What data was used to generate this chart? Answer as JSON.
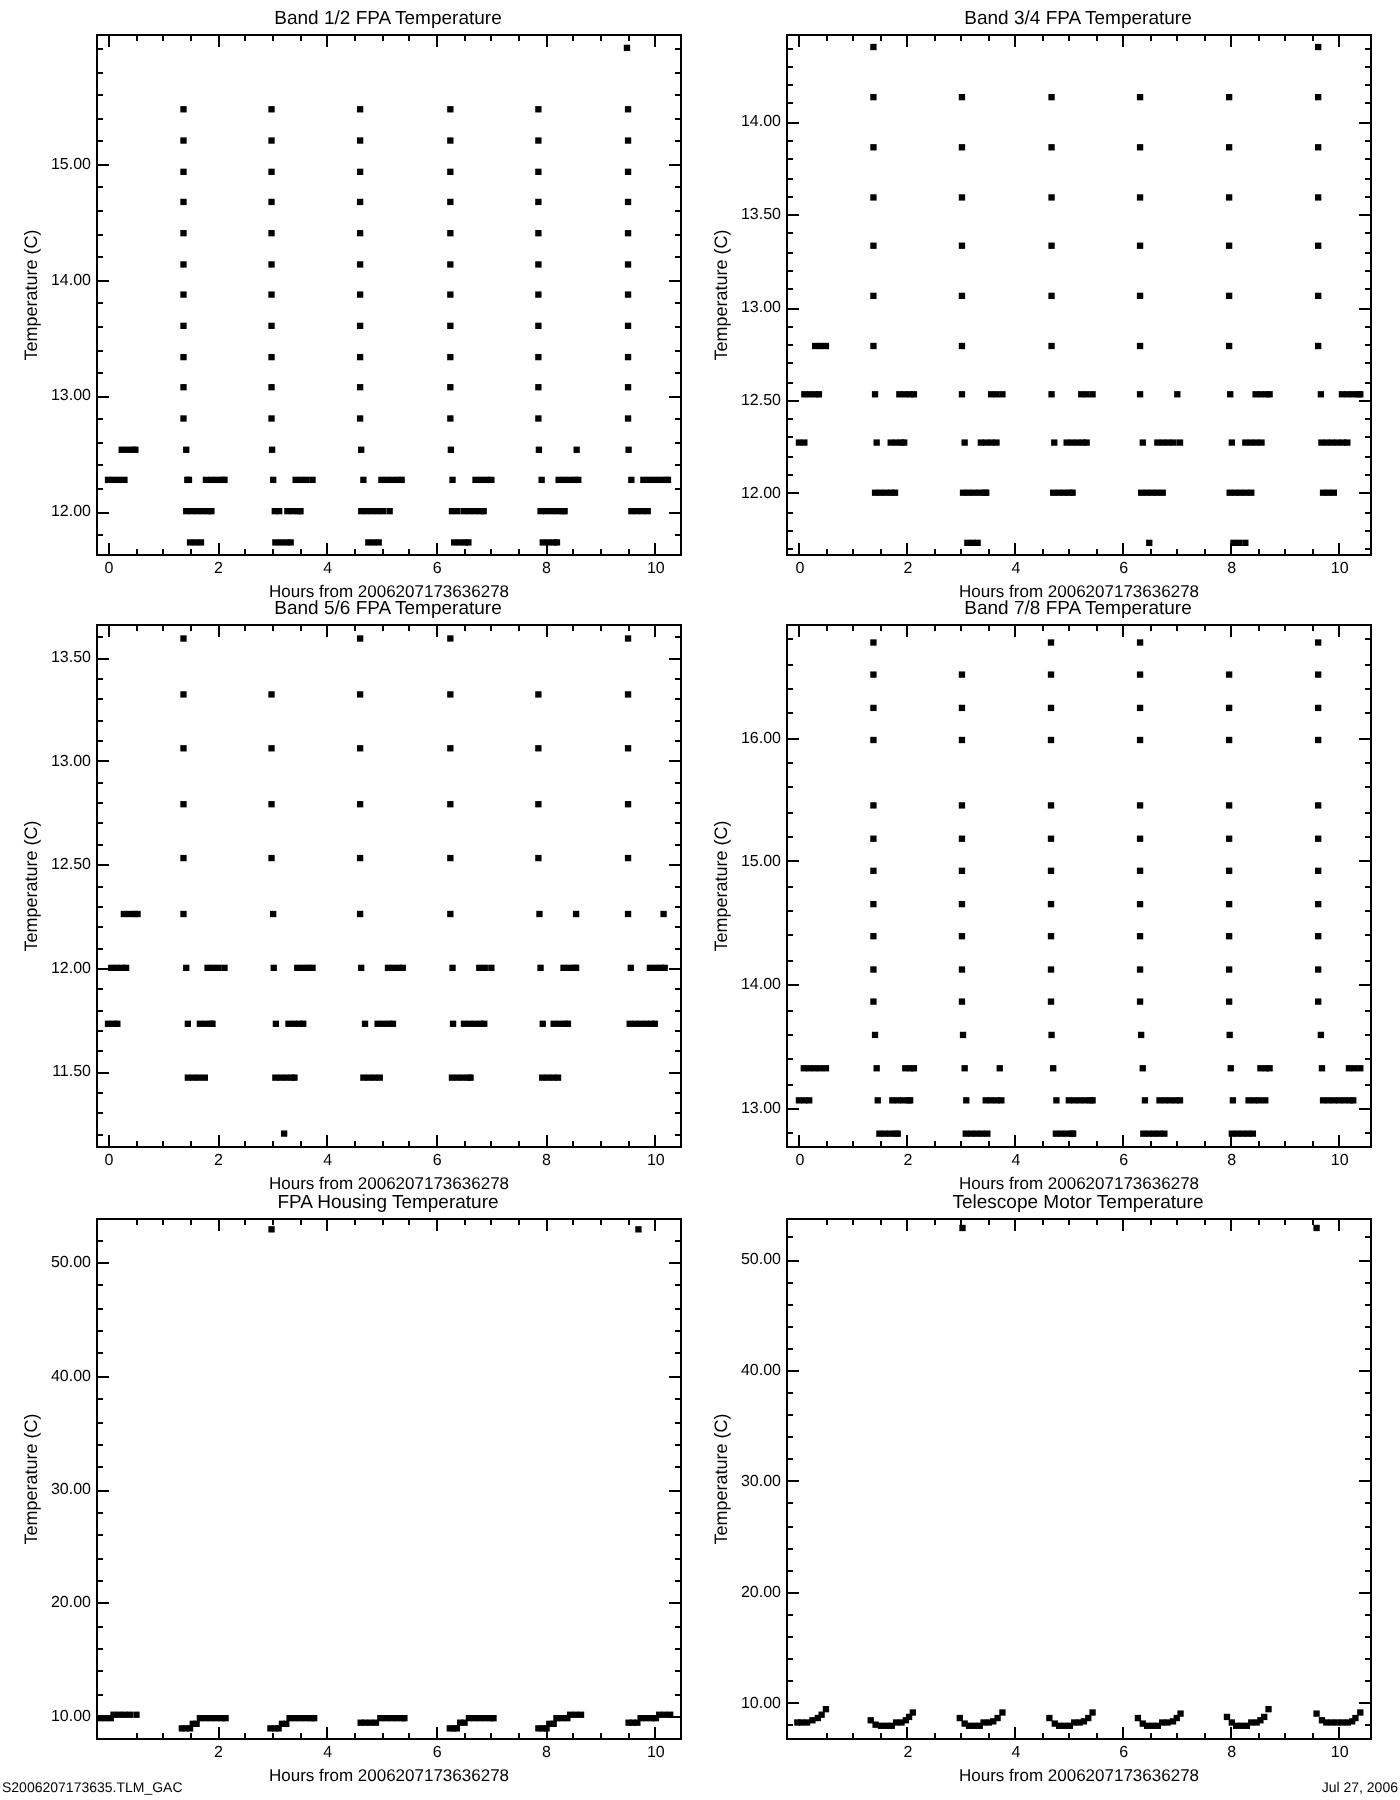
{
  "chart_data": [
    {
      "type": "scatter",
      "title": "Band 1/2 FPA Temperature",
      "xlabel": "Hours from 2006207173636278",
      "ylabel": "Temperature (C)",
      "color": "#000000",
      "marker": "square",
      "xlim": [
        -0.22,
        10.46
      ],
      "ylim": [
        11.63,
        16.12
      ],
      "xticks": [
        0,
        {
          "value": 0.5,
          "label": null
        },
        {
          "value": 1,
          "label": null
        },
        {
          "value": 1.5,
          "label": null
        },
        2,
        {
          "value": 2.5,
          "label": null
        },
        {
          "value": 3,
          "label": null
        },
        {
          "value": 3.5,
          "label": null
        },
        4,
        {
          "value": 4.5,
          "label": null
        },
        {
          "value": 5,
          "label": null
        },
        {
          "value": 5.5,
          "label": null
        },
        6,
        {
          "value": 6.5,
          "label": null
        },
        {
          "value": 7,
          "label": null
        },
        {
          "value": 7.5,
          "label": null
        },
        8,
        {
          "value": 8.5,
          "label": null
        },
        {
          "value": 9,
          "label": null
        },
        {
          "value": 9.5,
          "label": null
        },
        10
      ],
      "yticks": [
        {
          "value": 11.8,
          "label": null
        },
        {
          "value": 12,
          "label": "12.00"
        },
        {
          "value": 12.2,
          "label": null
        },
        {
          "value": 12.4,
          "label": null
        },
        {
          "value": 12.6,
          "label": null
        },
        {
          "value": 12.8,
          "label": null
        },
        {
          "value": 13,
          "label": "13.00"
        },
        {
          "value": 13.2,
          "label": null
        },
        {
          "value": 13.4,
          "label": null
        },
        {
          "value": 13.6,
          "label": null
        },
        {
          "value": 13.8,
          "label": null
        },
        {
          "value": 14,
          "label": "14.00"
        },
        {
          "value": 14.2,
          "label": null
        },
        {
          "value": 14.4,
          "label": null
        },
        {
          "value": 14.6,
          "label": null
        },
        {
          "value": 14.8,
          "label": null
        },
        {
          "value": 15,
          "label": "15.00"
        },
        {
          "value": 15.2,
          "label": null
        },
        {
          "value": 15.4,
          "label": null
        },
        {
          "value": 15.6,
          "label": null
        },
        {
          "value": 15.8,
          "label": null
        },
        {
          "value": 16,
          "label": null
        }
      ],
      "x": [
        0,
        0.1,
        0.2,
        0.3,
        0.25,
        0.35,
        0.45,
        0.5,
        1.38,
        1.38,
        1.38,
        1.38,
        1.38,
        1.38,
        1.38,
        1.38,
        1.38,
        1.38,
        1.38,
        1.43,
        1.45,
        1.48,
        1.43,
        1.53,
        1.63,
        1.73,
        1.83,
        1.89,
        1.5,
        1.6,
        1.7,
        1.79,
        1.89,
        1.99,
        2.09,
        2.13,
        2.99,
        2.99,
        2.99,
        2.99,
        2.99,
        2.99,
        2.99,
        2.99,
        2.99,
        2.99,
        2.99,
        3,
        3.02,
        3.05,
        3.13,
        3.28,
        3.38,
        3.48,
        3.52,
        3.06,
        3.16,
        3.26,
        3.34,
        3.43,
        3.53,
        3.63,
        3.74,
        4.61,
        4.61,
        4.61,
        4.61,
        4.61,
        4.61,
        4.61,
        4.61,
        4.61,
        4.61,
        4.61,
        4.63,
        4.67,
        4.63,
        4.73,
        4.83,
        4.93,
        5.03,
        5.15,
        4.76,
        4.86,
        4.95,
        5,
        5.1,
        5.2,
        5.3,
        5.37,
        6.26,
        6.26,
        6.26,
        6.26,
        6.26,
        6.26,
        6.26,
        6.26,
        6.26,
        6.26,
        6.26,
        6.27,
        6.3,
        6.29,
        6.39,
        6.51,
        6.61,
        6.71,
        6.81,
        6.87,
        6.33,
        6.43,
        6.53,
        6.59,
        6.72,
        6.82,
        6.92,
        7.01,
        7.87,
        7.87,
        7.87,
        7.87,
        7.87,
        7.87,
        7.87,
        7.87,
        7.87,
        7.87,
        7.87,
        7.88,
        7.93,
        7.91,
        8.01,
        8.12,
        8.22,
        8.32,
        8.35,
        7.95,
        8.05,
        8.15,
        8.21,
        8.24,
        8.34,
        8.44,
        8.54,
        8.6,
        8.57,
        9.49,
        9.51,
        9.51,
        9.51,
        9.51,
        9.51,
        9.51,
        9.51,
        9.51,
        9.51,
        9.51,
        9.51,
        9.52,
        9.57,
        9.57,
        9.67,
        9.77,
        9.87,
        9.79,
        9.89,
        9.99,
        10.09,
        10.19,
        10.24
      ],
      "values": [
        12.27,
        12.27,
        12.27,
        12.27,
        12.53,
        12.53,
        12.53,
        12.53,
        15.47,
        15.2,
        14.93,
        14.67,
        14.4,
        14.13,
        13.87,
        13.6,
        13.33,
        13.07,
        12.8,
        12.53,
        12.27,
        12.27,
        12,
        12,
        12,
        12,
        12,
        12,
        11.73,
        11.73,
        11.73,
        12.27,
        12.27,
        12.27,
        12.27,
        12.27,
        15.47,
        15.2,
        14.93,
        14.67,
        14.4,
        14.13,
        13.87,
        13.6,
        13.33,
        13.07,
        12.8,
        12.53,
        12.27,
        12,
        12,
        12,
        12,
        12,
        12,
        11.73,
        11.73,
        11.73,
        11.73,
        12.27,
        12.27,
        12.27,
        12.27,
        15.47,
        15.2,
        14.93,
        14.67,
        14.4,
        14.13,
        13.87,
        13.6,
        13.33,
        13.07,
        12.8,
        12.53,
        12.27,
        12,
        12,
        12,
        12,
        12,
        12,
        11.73,
        11.73,
        11.73,
        12.27,
        12.27,
        12.27,
        12.27,
        12.27,
        15.47,
        15.2,
        14.93,
        14.67,
        14.4,
        14.13,
        13.87,
        13.6,
        13.33,
        13.07,
        12.8,
        12.53,
        12.27,
        12,
        12,
        12,
        12,
        12,
        12,
        12,
        11.73,
        11.73,
        11.73,
        11.73,
        12.27,
        12.27,
        12.27,
        12.27,
        15.47,
        15.2,
        14.93,
        14.67,
        14.4,
        14.13,
        13.87,
        13.6,
        13.33,
        13.07,
        12.8,
        12.53,
        12.27,
        12,
        12,
        12,
        12,
        12,
        12,
        11.73,
        11.73,
        11.73,
        11.73,
        12.27,
        12.27,
        12.27,
        12.27,
        12.27,
        12.53,
        16,
        15.47,
        15.2,
        14.93,
        14.67,
        14.4,
        14.13,
        13.87,
        13.6,
        13.33,
        13.07,
        12.8,
        12.53,
        12.27,
        12,
        12,
        12,
        12,
        12.27,
        12.27,
        12.27,
        12.27,
        12.27,
        12.27
      ]
    },
    {
      "type": "scatter",
      "title": "Band 3/4 FPA Temperature",
      "xlabel": "Hours from 2006207173636278",
      "ylabel": "Temperature (C)",
      "color": "#000000",
      "marker": "square",
      "xlim": [
        -0.24,
        10.58
      ],
      "ylim": [
        11.67,
        14.47
      ],
      "xticks": [
        0,
        {
          "value": 0.5,
          "label": null
        },
        {
          "value": 1,
          "label": null
        },
        {
          "value": 1.5,
          "label": null
        },
        2,
        {
          "value": 2.5,
          "label": null
        },
        {
          "value": 3,
          "label": null
        },
        {
          "value": 3.5,
          "label": null
        },
        4,
        {
          "value": 4.5,
          "label": null
        },
        {
          "value": 5,
          "label": null
        },
        {
          "value": 5.5,
          "label": null
        },
        6,
        {
          "value": 6.5,
          "label": null
        },
        {
          "value": 7,
          "label": null
        },
        {
          "value": 7.5,
          "label": null
        },
        8,
        {
          "value": 8.5,
          "label": null
        },
        {
          "value": 9,
          "label": null
        },
        {
          "value": 9.5,
          "label": null
        },
        10
      ],
      "yticks": [
        {
          "value": 11.7,
          "label": null
        },
        {
          "value": 11.8,
          "label": null
        },
        {
          "value": 11.9,
          "label": null
        },
        {
          "value": 12,
          "label": "12.00"
        },
        {
          "value": 12.1,
          "label": null
        },
        {
          "value": 12.2,
          "label": null
        },
        {
          "value": 12.3,
          "label": null
        },
        {
          "value": 12.4,
          "label": null
        },
        {
          "value": 12.5,
          "label": "12.50"
        },
        {
          "value": 12.6,
          "label": null
        },
        {
          "value": 12.7,
          "label": null
        },
        {
          "value": 12.8,
          "label": null
        },
        {
          "value": 12.9,
          "label": null
        },
        {
          "value": 13,
          "label": "13.00"
        },
        {
          "value": 13.1,
          "label": null
        },
        {
          "value": 13.2,
          "label": null
        },
        {
          "value": 13.3,
          "label": null
        },
        {
          "value": 13.4,
          "label": null
        },
        {
          "value": 13.5,
          "label": "13.50"
        },
        {
          "value": 13.6,
          "label": null
        },
        {
          "value": 13.7,
          "label": null
        },
        {
          "value": 13.8,
          "label": null
        },
        {
          "value": 13.9,
          "label": null
        },
        {
          "value": 14,
          "label": "14.00"
        },
        {
          "value": 14.1,
          "label": null
        },
        {
          "value": 14.2,
          "label": null
        },
        {
          "value": 14.3,
          "label": null
        },
        {
          "value": 14.4,
          "label": null
        }
      ],
      "x": [
        0,
        0.1,
        0.1,
        0.2,
        0.3,
        0.37,
        0.3,
        0.4,
        0.5,
        1.38,
        1.38,
        1.38,
        1.38,
        1.38,
        1.38,
        1.38,
        1.41,
        1.44,
        1.41,
        1.51,
        1.61,
        1.71,
        1.78,
        1.7,
        1.8,
        1.9,
        1.95,
        1.86,
        1.96,
        2.06,
        2.13,
        3.02,
        3.02,
        3.02,
        3.02,
        3.02,
        3.02,
        3.02,
        3.07,
        3.04,
        3.14,
        3.24,
        3.34,
        3.44,
        3.47,
        3.12,
        3.22,
        3.31,
        3.37,
        3.47,
        3.57,
        3.66,
        3.56,
        3.66,
        3.77,
        4.68,
        4.68,
        4.68,
        4.68,
        4.68,
        4.68,
        4.68,
        4.73,
        4.71,
        4.81,
        4.91,
        5.01,
        5.07,
        4.96,
        5.06,
        5.16,
        5.26,
        5.33,
        5.23,
        5.33,
        5.44,
        6.32,
        6.32,
        6.32,
        6.32,
        6.32,
        6.32,
        6.32,
        6.37,
        6.34,
        6.44,
        6.54,
        6.64,
        6.74,
        6.49,
        6.64,
        6.74,
        6.84,
        6.94,
        7.06,
        7.01,
        7.97,
        7.97,
        7.97,
        7.97,
        7.97,
        7.97,
        7.99,
        8.02,
        7.98,
        8.08,
        8.18,
        8.28,
        8.38,
        8.05,
        8.15,
        8.27,
        8.27,
        8.37,
        8.47,
        8.57,
        8.46,
        8.56,
        8.66,
        8.72,
        9.62,
        9.62,
        9.62,
        9.62,
        9.62,
        9.62,
        9.62,
        9.67,
        9.68,
        9.71,
        9.81,
        9.91,
        9.78,
        9.88,
        9.98,
        10.08,
        10.16,
        10.06,
        10.16,
        10.26,
        10.36,
        10.4
      ],
      "values": [
        12.27,
        12.27,
        12.53,
        12.53,
        12.53,
        12.53,
        12.79,
        12.79,
        12.79,
        14.4,
        14.13,
        13.86,
        13.59,
        13.33,
        13.06,
        12.79,
        12.53,
        12.27,
        12,
        12,
        12,
        12,
        12,
        12.27,
        12.27,
        12.27,
        12.27,
        12.53,
        12.53,
        12.53,
        12.53,
        14.13,
        13.86,
        13.59,
        13.33,
        13.06,
        12.79,
        12.53,
        12.27,
        12,
        12,
        12,
        12,
        12,
        12,
        11.73,
        11.73,
        11.73,
        12.27,
        12.27,
        12.27,
        12.27,
        12.53,
        12.53,
        12.53,
        14.13,
        13.86,
        13.59,
        13.33,
        13.06,
        12.79,
        12.53,
        12.27,
        12,
        12,
        12,
        12,
        12,
        12.27,
        12.27,
        12.27,
        12.27,
        12.27,
        12.53,
        12.53,
        12.53,
        14.13,
        13.86,
        13.59,
        13.33,
        13.06,
        12.79,
        12.53,
        12.27,
        12,
        12,
        12,
        12,
        12,
        11.73,
        12.27,
        12.27,
        12.27,
        12.27,
        12.27,
        12.53,
        14.13,
        13.86,
        13.59,
        13.33,
        13.06,
        12.79,
        12.53,
        12.27,
        12,
        12,
        12,
        12,
        12,
        11.73,
        11.73,
        11.73,
        12.27,
        12.27,
        12.27,
        12.27,
        12.53,
        12.53,
        12.53,
        12.53,
        14.4,
        14.13,
        13.86,
        13.59,
        13.33,
        13.06,
        12.79,
        12.53,
        12.27,
        12,
        12,
        12,
        12.27,
        12.27,
        12.27,
        12.27,
        12.27,
        12.53,
        12.53,
        12.53,
        12.53,
        12.53
      ]
    },
    {
      "type": "scatter",
      "title": "Band 5/6 FPA Temperature",
      "xlabel": "Hours from 2006207173636278",
      "ylabel": "Temperature (C)",
      "color": "#000000",
      "marker": "square",
      "xlim": [
        -0.22,
        10.46
      ],
      "ylim": [
        11.14,
        13.66
      ],
      "xticks": [
        0,
        {
          "value": 0.5,
          "label": null
        },
        {
          "value": 1,
          "label": null
        },
        {
          "value": 1.5,
          "label": null
        },
        2,
        {
          "value": 2.5,
          "label": null
        },
        {
          "value": 3,
          "label": null
        },
        {
          "value": 3.5,
          "label": null
        },
        4,
        {
          "value": 4.5,
          "label": null
        },
        {
          "value": 5,
          "label": null
        },
        {
          "value": 5.5,
          "label": null
        },
        6,
        {
          "value": 6.5,
          "label": null
        },
        {
          "value": 7,
          "label": null
        },
        {
          "value": 7.5,
          "label": null
        },
        8,
        {
          "value": 8.5,
          "label": null
        },
        {
          "value": 9,
          "label": null
        },
        {
          "value": 9.5,
          "label": null
        },
        10
      ],
      "yticks": [
        {
          "value": 11.2,
          "label": null
        },
        {
          "value": 11.3,
          "label": null
        },
        {
          "value": 11.4,
          "label": null
        },
        {
          "value": 11.5,
          "label": "11.50"
        },
        {
          "value": 11.6,
          "label": null
        },
        {
          "value": 11.7,
          "label": null
        },
        {
          "value": 11.8,
          "label": null
        },
        {
          "value": 11.9,
          "label": null
        },
        {
          "value": 12,
          "label": "12.00"
        },
        {
          "value": 12.1,
          "label": null
        },
        {
          "value": 12.2,
          "label": null
        },
        {
          "value": 12.3,
          "label": null
        },
        {
          "value": 12.4,
          "label": null
        },
        {
          "value": 12.5,
          "label": "12.50"
        },
        {
          "value": 12.6,
          "label": null
        },
        {
          "value": 12.7,
          "label": null
        },
        {
          "value": 12.8,
          "label": null
        },
        {
          "value": 12.9,
          "label": null
        },
        {
          "value": 13,
          "label": "13.00"
        },
        {
          "value": 13.1,
          "label": null
        },
        {
          "value": 13.2,
          "label": null
        },
        {
          "value": 13.3,
          "label": null
        },
        {
          "value": 13.4,
          "label": null
        },
        {
          "value": 13.5,
          "label": "13.50"
        },
        {
          "value": 13.6,
          "label": null
        }
      ],
      "x": [
        0,
        0.1,
        0.17,
        0.06,
        0.16,
        0.26,
        0.33,
        0.29,
        0.39,
        0.49,
        0.54,
        1.38,
        1.38,
        1.38,
        1.38,
        1.38,
        1.38,
        1.43,
        1.46,
        1.46,
        1.56,
        1.66,
        1.77,
        1.68,
        1.78,
        1.88,
        1.91,
        1.82,
        1.92,
        2.02,
        2.13,
        2.99,
        2.99,
        2.99,
        2.99,
        3.02,
        3.03,
        3.07,
        3.06,
        3.16,
        3.26,
        3.36,
        3.41,
        3.22,
        3.3,
        3.4,
        3.5,
        3.57,
        3.46,
        3.56,
        3.66,
        3.74,
        4.61,
        4.61,
        4.61,
        4.61,
        4.61,
        4.61,
        4.63,
        4.7,
        4.67,
        4.77,
        4.87,
        4.97,
        4.93,
        5.03,
        5.13,
        5.21,
        5.12,
        5.22,
        5.32,
        5.39,
        6.26,
        6.26,
        6.26,
        6.26,
        6.26,
        6.26,
        6.3,
        6.31,
        6.29,
        6.39,
        6.49,
        6.59,
        6.63,
        6.51,
        6.61,
        6.71,
        6.81,
        6.88,
        6.79,
        6.89,
        7.01,
        7.87,
        7.87,
        7.87,
        7.87,
        7.89,
        7.91,
        7.95,
        7.94,
        8.04,
        8.14,
        8.23,
        8.15,
        8.25,
        8.35,
        8.41,
        8.33,
        8.43,
        8.53,
        8.56,
        8.56,
        9.51,
        9.51,
        9.51,
        9.51,
        9.51,
        9.51,
        9.56,
        9.54,
        9.64,
        9.74,
        9.84,
        9.94,
        10,
        9.91,
        10.01,
        10.11,
        10.18,
        10.16
      ],
      "values": [
        11.73,
        11.73,
        11.73,
        12,
        12,
        12,
        12,
        12.26,
        12.26,
        12.26,
        12.26,
        13.59,
        13.32,
        13.06,
        12.79,
        12.53,
        12.26,
        12,
        11.73,
        11.47,
        11.47,
        11.47,
        11.47,
        11.73,
        11.73,
        11.73,
        11.73,
        12,
        12,
        12,
        12,
        13.32,
        13.06,
        12.79,
        12.53,
        12.26,
        12,
        11.73,
        11.47,
        11.47,
        11.47,
        11.47,
        11.47,
        11.2,
        11.73,
        11.73,
        11.73,
        11.73,
        12,
        12,
        12,
        12,
        13.59,
        13.32,
        13.06,
        12.79,
        12.53,
        12.26,
        12,
        11.73,
        11.47,
        11.47,
        11.47,
        11.47,
        11.73,
        11.73,
        11.73,
        11.73,
        12,
        12,
        12,
        12,
        13.59,
        13.32,
        13.06,
        12.79,
        12.53,
        12.26,
        12,
        11.73,
        11.47,
        11.47,
        11.47,
        11.47,
        11.47,
        11.73,
        11.73,
        11.73,
        11.73,
        11.73,
        12,
        12,
        12,
        13.32,
        13.06,
        12.79,
        12.53,
        12.26,
        12,
        11.73,
        11.47,
        11.47,
        11.47,
        11.47,
        11.73,
        11.73,
        11.73,
        11.73,
        12,
        12,
        12,
        12,
        12.26,
        13.59,
        13.32,
        13.06,
        12.79,
        12.53,
        12.26,
        12,
        11.73,
        11.73,
        11.73,
        11.73,
        11.73,
        11.73,
        12,
        12,
        12,
        12,
        12.26
      ]
    },
    {
      "type": "scatter",
      "title": "Band 7/8 FPA Temperature",
      "xlabel": "Hours from 2006207173636278",
      "ylabel": "Temperature (C)",
      "color": "#000000",
      "marker": "square",
      "xlim": [
        -0.24,
        10.58
      ],
      "ylim": [
        12.69,
        16.92
      ],
      "xticks": [
        0,
        {
          "value": 0.5,
          "label": null
        },
        {
          "value": 1,
          "label": null
        },
        {
          "value": 1.5,
          "label": null
        },
        2,
        {
          "value": 2.5,
          "label": null
        },
        {
          "value": 3,
          "label": null
        },
        {
          "value": 3.5,
          "label": null
        },
        4,
        {
          "value": 4.5,
          "label": null
        },
        {
          "value": 5,
          "label": null
        },
        {
          "value": 5.5,
          "label": null
        },
        6,
        {
          "value": 6.5,
          "label": null
        },
        {
          "value": 7,
          "label": null
        },
        {
          "value": 7.5,
          "label": null
        },
        8,
        {
          "value": 8.5,
          "label": null
        },
        {
          "value": 9,
          "label": null
        },
        {
          "value": 9.5,
          "label": null
        },
        10
      ],
      "yticks": [
        {
          "value": 12.8,
          "label": null
        },
        {
          "value": 13,
          "label": "13.00"
        },
        {
          "value": 13.2,
          "label": null
        },
        {
          "value": 13.4,
          "label": null
        },
        {
          "value": 13.6,
          "label": null
        },
        {
          "value": 13.8,
          "label": null
        },
        {
          "value": 14,
          "label": "14.00"
        },
        {
          "value": 14.2,
          "label": null
        },
        {
          "value": 14.4,
          "label": null
        },
        {
          "value": 14.6,
          "label": null
        },
        {
          "value": 14.8,
          "label": null
        },
        {
          "value": 15,
          "label": "15.00"
        },
        {
          "value": 15.2,
          "label": null
        },
        {
          "value": 15.4,
          "label": null
        },
        {
          "value": 15.6,
          "label": null
        },
        {
          "value": 15.8,
          "label": null
        },
        {
          "value": 16,
          "label": "16.00"
        },
        {
          "value": 16.2,
          "label": null
        },
        {
          "value": 16.4,
          "label": null
        },
        {
          "value": 16.6,
          "label": null
        },
        {
          "value": 16.8,
          "label": null
        }
      ],
      "x": [
        0,
        0.1,
        0.19,
        0.09,
        0.19,
        0.29,
        0.39,
        0.5,
        1.38,
        1.38,
        1.38,
        1.38,
        1.38,
        1.38,
        1.38,
        1.38,
        1.38,
        1.38,
        1.38,
        1.41,
        1.44,
        1.46,
        1.49,
        1.59,
        1.69,
        1.79,
        1.83,
        1.73,
        1.83,
        1.93,
        2.03,
        2.06,
        1.97,
        2.07,
        2.13,
        3.02,
        3.02,
        3.02,
        3.02,
        3.02,
        3.02,
        3.02,
        3.02,
        3.02,
        3.02,
        3.04,
        3.07,
        3.1,
        3.09,
        3.19,
        3.29,
        3.39,
        3.49,
        3.46,
        3.56,
        3.66,
        3.75,
        3.72,
        4.67,
        4.67,
        4.67,
        4.67,
        4.67,
        4.67,
        4.67,
        4.67,
        4.67,
        4.67,
        4.67,
        4.68,
        4.71,
        4.77,
        4.76,
        4.86,
        4.96,
        5.06,
        5.08,
        5,
        5.1,
        5.2,
        5.3,
        5.4,
        5.44,
        6.32,
        6.32,
        6.32,
        6.32,
        6.32,
        6.32,
        6.32,
        6.32,
        6.32,
        6.32,
        6.32,
        6.34,
        6.37,
        6.41,
        6.38,
        6.48,
        6.58,
        6.68,
        6.77,
        6.68,
        6.78,
        6.88,
        6.98,
        7.06,
        7.97,
        7.97,
        7.97,
        7.97,
        7.97,
        7.97,
        7.97,
        7.97,
        7.97,
        7.97,
        7.98,
        8,
        8.04,
        8.02,
        8.12,
        8.22,
        8.32,
        8.41,
        8.33,
        8.43,
        8.53,
        8.64,
        8.55,
        8.65,
        8.72,
        9.62,
        9.62,
        9.62,
        9.62,
        9.62,
        9.62,
        9.62,
        9.62,
        9.62,
        9.62,
        9.62,
        9.67,
        9.69,
        9.71,
        9.81,
        9.91,
        10.01,
        10.11,
        10.21,
        10.27,
        10.19,
        10.29,
        10.4
      ],
      "values": [
        13.06,
        13.06,
        13.06,
        13.32,
        13.32,
        13.32,
        13.32,
        13.32,
        16.77,
        16.51,
        16.24,
        15.98,
        15.45,
        15.18,
        14.92,
        14.65,
        14.39,
        14.12,
        13.86,
        13.59,
        13.32,
        13.06,
        12.79,
        12.79,
        12.79,
        12.79,
        12.79,
        13.06,
        13.06,
        13.06,
        13.06,
        13.06,
        13.32,
        13.32,
        13.32,
        16.51,
        16.24,
        15.98,
        15.45,
        15.18,
        14.92,
        14.65,
        14.39,
        14.12,
        13.86,
        13.59,
        13.32,
        13.06,
        12.79,
        12.79,
        12.79,
        12.79,
        12.79,
        13.06,
        13.06,
        13.06,
        13.06,
        13.32,
        16.77,
        16.51,
        16.24,
        15.98,
        15.45,
        15.18,
        14.92,
        14.65,
        14.39,
        14.12,
        13.86,
        13.59,
        13.32,
        13.06,
        12.79,
        12.79,
        12.79,
        12.79,
        12.79,
        13.06,
        13.06,
        13.06,
        13.06,
        13.06,
        13.06,
        16.77,
        16.51,
        16.24,
        15.98,
        15.45,
        15.18,
        14.92,
        14.65,
        14.39,
        14.12,
        13.86,
        13.59,
        13.32,
        13.06,
        12.79,
        12.79,
        12.79,
        12.79,
        12.79,
        13.06,
        13.06,
        13.06,
        13.06,
        13.06,
        16.51,
        16.24,
        15.98,
        15.45,
        15.18,
        14.92,
        14.65,
        14.39,
        14.12,
        13.86,
        13.59,
        13.32,
        13.06,
        12.79,
        12.79,
        12.79,
        12.79,
        12.79,
        13.06,
        13.06,
        13.06,
        13.06,
        13.32,
        13.32,
        13.32,
        16.77,
        16.51,
        16.24,
        15.98,
        15.45,
        15.18,
        14.92,
        14.65,
        14.39,
        14.12,
        13.86,
        13.59,
        13.32,
        13.06,
        13.06,
        13.06,
        13.06,
        13.06,
        13.06,
        13.06,
        13.32,
        13.32,
        13.32
      ]
    },
    {
      "type": "scatter",
      "title": "FPA Housing Temperature",
      "xlabel": "Hours from 2006207173636278",
      "ylabel": "Temperature (C)",
      "color": "#000000",
      "marker": "square",
      "xlim": [
        -0.22,
        10.46
      ],
      "ylim": [
        8.05,
        53.9
      ],
      "xticks": [
        {
          "value": 0.5,
          "label": null
        },
        {
          "value": 1,
          "label": null
        },
        {
          "value": 1.5,
          "label": null
        },
        2,
        {
          "value": 2.5,
          "label": null
        },
        {
          "value": 3,
          "label": null
        },
        {
          "value": 3.5,
          "label": null
        },
        4,
        {
          "value": 4.5,
          "label": null
        },
        {
          "value": 5,
          "label": null
        },
        {
          "value": 5.5,
          "label": null
        },
        6,
        {
          "value": 6.5,
          "label": null
        },
        {
          "value": 7,
          "label": null
        },
        {
          "value": 7.5,
          "label": null
        },
        8,
        {
          "value": 8.5,
          "label": null
        },
        {
          "value": 9,
          "label": null
        },
        {
          "value": 9.5,
          "label": null
        },
        10
      ],
      "yticks": [
        {
          "value": 10,
          "label": "10.00"
        },
        {
          "value": 12,
          "label": null
        },
        {
          "value": 14,
          "label": null
        },
        {
          "value": 16,
          "label": null
        },
        {
          "value": 18,
          "label": null
        },
        {
          "value": 20,
          "label": "20.00"
        },
        {
          "value": 22,
          "label": null
        },
        {
          "value": 24,
          "label": null
        },
        {
          "value": 26,
          "label": null
        },
        {
          "value": 28,
          "label": null
        },
        {
          "value": 30,
          "label": "30.00"
        },
        {
          "value": 32,
          "label": null
        },
        {
          "value": 34,
          "label": null
        },
        {
          "value": 36,
          "label": null
        },
        {
          "value": 38,
          "label": null
        },
        {
          "value": 40,
          "label": "40.00"
        },
        {
          "value": 42,
          "label": null
        },
        {
          "value": 44,
          "label": null
        },
        {
          "value": 46,
          "label": null
        },
        {
          "value": 48,
          "label": null
        },
        {
          "value": 50,
          "label": "50.00"
        },
        {
          "value": 52,
          "label": null
        }
      ],
      "x": [
        -0.15,
        -0.05,
        0.05,
        0.1,
        0.2,
        0.3,
        0.4,
        0.52,
        1.35,
        1.42,
        1.5,
        1.55,
        1.62,
        1.68,
        1.78,
        1.88,
        1.98,
        2.08,
        2.15,
        2.97,
        3.05,
        3.12,
        3.18,
        3.26,
        3.32,
        3.42,
        3.52,
        3.62,
        3.72,
        3.77,
        2.99,
        4.62,
        4.7,
        4.8,
        4.9,
        4.98,
        5.08,
        5.18,
        5.28,
        5.38,
        5.42,
        6.25,
        6.32,
        6.38,
        6.44,
        6.52,
        6.6,
        6.7,
        6.8,
        6.9,
        7,
        7.05,
        7.87,
        7.95,
        8.02,
        8.07,
        8.15,
        8.2,
        8.3,
        8.4,
        8.45,
        8.55,
        8.65,
        9.52,
        9.6,
        9.68,
        9.74,
        9.84,
        9.94,
        10.02,
        10.08,
        10.18,
        10.28,
        9.7
      ],
      "values": [
        9.8,
        9.8,
        9.8,
        10.1,
        10.1,
        10.1,
        10.1,
        10.1,
        8.9,
        8.9,
        8.9,
        9.3,
        9.3,
        9.8,
        9.8,
        9.8,
        9.8,
        9.8,
        9.8,
        8.9,
        8.9,
        8.9,
        9.3,
        9.3,
        9.8,
        9.8,
        9.8,
        9.8,
        9.8,
        9.8,
        52.9,
        9.4,
        9.4,
        9.4,
        9.4,
        9.8,
        9.8,
        9.8,
        9.8,
        9.8,
        9.8,
        8.9,
        8.9,
        8.9,
        9.4,
        9.4,
        9.8,
        9.8,
        9.8,
        9.8,
        9.8,
        9.8,
        8.9,
        8.9,
        8.9,
        9.3,
        9.3,
        9.8,
        9.8,
        9.8,
        10.1,
        10.1,
        10.1,
        9.4,
        9.4,
        9.4,
        9.8,
        9.8,
        9.8,
        9.8,
        10.1,
        10.1,
        10.1,
        52.9
      ],
      "annotations": [
        "S2006207173635.TLM_GAC"
      ]
    },
    {
      "type": "scatter",
      "title": "Telescope Motor Temperature",
      "xlabel": "Hours from 2006207173636278",
      "ylabel": "Temperature (C)",
      "color": "#000000",
      "marker": "square",
      "xlim": [
        -0.24,
        10.58
      ],
      "ylim": [
        6.8,
        53.7
      ],
      "xticks": [
        {
          "value": 0.5,
          "label": null
        },
        {
          "value": 1,
          "label": null
        },
        {
          "value": 1.5,
          "label": null
        },
        2,
        {
          "value": 2.5,
          "label": null
        },
        {
          "value": 3,
          "label": null
        },
        {
          "value": 3.5,
          "label": null
        },
        4,
        {
          "value": 4.5,
          "label": null
        },
        {
          "value": 5,
          "label": null
        },
        {
          "value": 5.5,
          "label": null
        },
        6,
        {
          "value": 6.5,
          "label": null
        },
        {
          "value": 7,
          "label": null
        },
        {
          "value": 7.5,
          "label": null
        },
        8,
        {
          "value": 8.5,
          "label": null
        },
        {
          "value": 9,
          "label": null
        },
        {
          "value": 9.5,
          "label": null
        },
        10
      ],
      "yticks": [
        {
          "value": 8,
          "label": null
        },
        {
          "value": 10,
          "label": "10.00"
        },
        {
          "value": 12,
          "label": null
        },
        {
          "value": 14,
          "label": null
        },
        {
          "value": 16,
          "label": null
        },
        {
          "value": 18,
          "label": null
        },
        {
          "value": 20,
          "label": "20.00"
        },
        {
          "value": 22,
          "label": null
        },
        {
          "value": 24,
          "label": null
        },
        {
          "value": 26,
          "label": null
        },
        {
          "value": 28,
          "label": null
        },
        {
          "value": 30,
          "label": "30.00"
        },
        {
          "value": 32,
          "label": null
        },
        {
          "value": 34,
          "label": null
        },
        {
          "value": 36,
          "label": null
        },
        {
          "value": 38,
          "label": null
        },
        {
          "value": 40,
          "label": "40.00"
        },
        {
          "value": 42,
          "label": null
        },
        {
          "value": 44,
          "label": null
        },
        {
          "value": 46,
          "label": null
        },
        {
          "value": 48,
          "label": null
        },
        {
          "value": 50,
          "label": "50.00"
        },
        {
          "value": 52,
          "label": null
        }
      ],
      "x": [
        -0.03,
        0.05,
        0.15,
        0.25,
        0.35,
        0.42,
        0.5,
        1.33,
        1.42,
        1.52,
        1.62,
        1.72,
        1.8,
        1.9,
        1.98,
        2.04,
        2.11,
        2.98,
        3.07,
        3.15,
        3.25,
        3.35,
        3.42,
        3.52,
        3.6,
        3.68,
        3.77,
        3.03,
        4.64,
        4.74,
        4.82,
        4.92,
        5.02,
        5.1,
        5.2,
        5.28,
        5.36,
        5.44,
        6.28,
        6.37,
        6.45,
        6.55,
        6.65,
        6.73,
        6.83,
        6.93,
        7,
        7.07,
        7.93,
        8.02,
        8.1,
        8.2,
        8.3,
        8.38,
        8.48,
        8.55,
        8.62,
        8.7,
        9.59,
        9.69,
        9.77,
        9.87,
        9.97,
        10.07,
        10.17,
        10.25,
        10.31,
        10.4,
        9.59
      ],
      "values": [
        8.2,
        8.2,
        8.2,
        8.4,
        8.6,
        8.9,
        9.4,
        8.4,
        8,
        7.9,
        7.9,
        7.9,
        8.2,
        8.2,
        8.4,
        8.7,
        9.1,
        8.6,
        8.1,
        7.9,
        7.9,
        7.9,
        8.2,
        8.2,
        8.3,
        8.6,
        9.1,
        52.8,
        8.6,
        8.1,
        7.9,
        7.9,
        7.9,
        8.2,
        8.2,
        8.3,
        8.6,
        9.1,
        8.6,
        8.1,
        7.9,
        7.9,
        7.9,
        8.2,
        8.2,
        8.3,
        8.6,
        9,
        8.7,
        8.2,
        7.9,
        7.9,
        7.9,
        8.2,
        8.2,
        8.4,
        8.7,
        9.4,
        9,
        8.4,
        8.2,
        8.2,
        8.2,
        8.2,
        8.2,
        8.3,
        8.6,
        9.1,
        52.8
      ],
      "annotations": [
        "Jul 27, 2006"
      ]
    }
  ]
}
